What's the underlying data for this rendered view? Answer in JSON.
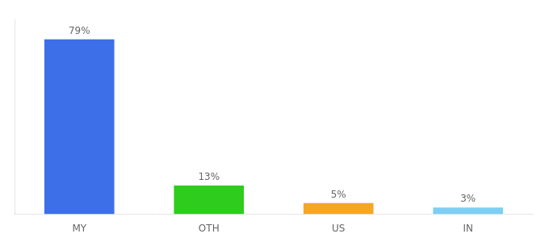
{
  "chart_data": {
    "type": "bar",
    "categories": [
      "MY",
      "OTH",
      "US",
      "IN"
    ],
    "values": [
      79,
      13,
      5,
      3
    ],
    "value_labels": [
      "79%",
      "13%",
      "5%",
      "3%"
    ],
    "data_labels": true,
    "colors": [
      "#3d6fe8",
      "#2ecc1d",
      "#f5a623",
      "#7ecef4"
    ],
    "ylim": [
      0,
      88
    ],
    "tick_labels": "x",
    "grid": false
  }
}
